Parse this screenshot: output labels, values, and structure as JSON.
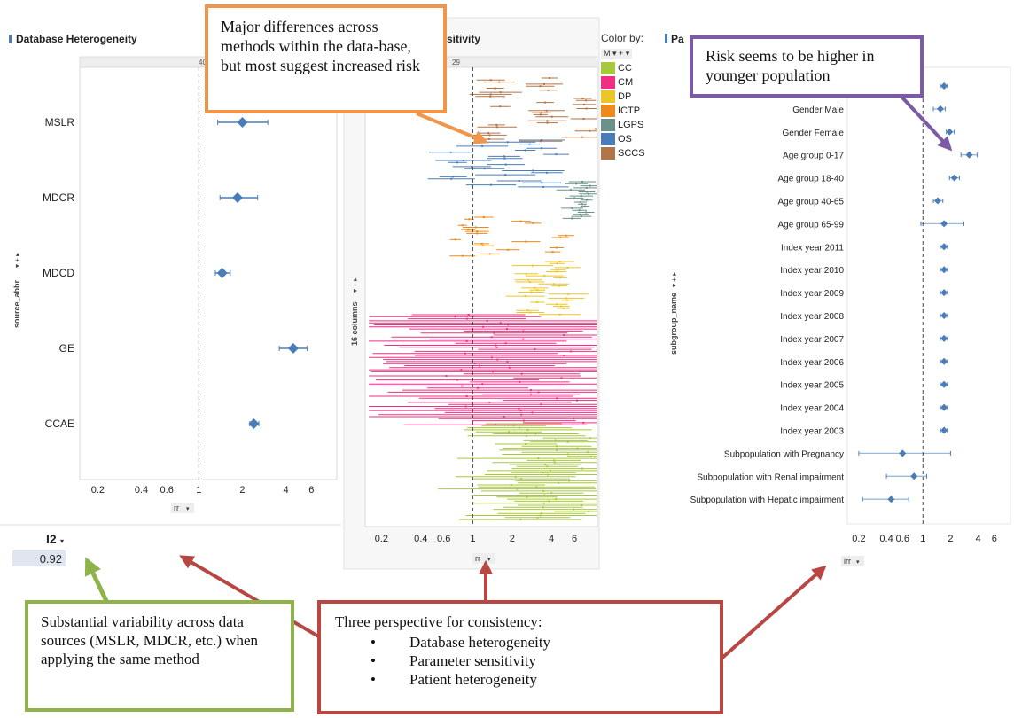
{
  "panels": {
    "database": {
      "title": "Database Heterogeneity",
      "top_count": "40",
      "y_field": "source_abbr",
      "x_field": "rr",
      "ticks": [
        0.2,
        0.4,
        0.6,
        1,
        2,
        4,
        6
      ],
      "rows": [
        {
          "label": "MSLR",
          "est": 2.0,
          "lo": 1.35,
          "hi": 3.0
        },
        {
          "label": "MDCR",
          "est": 1.85,
          "lo": 1.4,
          "hi": 2.55
        },
        {
          "label": "MDCD",
          "est": 1.45,
          "lo": 1.3,
          "hi": 1.65
        },
        {
          "label": "GE",
          "est": 4.5,
          "lo": 3.6,
          "hi": 5.6
        },
        {
          "label": "CCAE",
          "est": 2.4,
          "lo": 2.25,
          "hi": 2.6
        }
      ],
      "i2_label": "I2",
      "i2_value": "0.92"
    },
    "parameter": {
      "title_fragment": "sitivity",
      "top_count": "29",
      "y_field": "16 columns",
      "x_field": "rr",
      "ticks": [
        0.2,
        0.4,
        0.6,
        1,
        2,
        4,
        6
      ]
    },
    "patient": {
      "title_fragment": "Pa",
      "y_field": "subgroup_name",
      "x_field": "irr",
      "ticks": [
        0.2,
        0.4,
        0.6,
        1,
        2,
        4,
        6
      ],
      "rows": [
        {
          "label": "",
          "est": 1.7,
          "lo": 1.55,
          "hi": 1.85
        },
        {
          "label": "Gender Male",
          "est": 1.55,
          "lo": 1.3,
          "hi": 1.75
        },
        {
          "label": "Gender Female",
          "est": 1.95,
          "lo": 1.8,
          "hi": 2.2
        },
        {
          "label": "Age group 0-17",
          "est": 3.2,
          "lo": 2.6,
          "hi": 3.9
        },
        {
          "label": "Age group 18-40",
          "est": 2.2,
          "lo": 1.95,
          "hi": 2.5
        },
        {
          "label": "Age group 40-65",
          "est": 1.45,
          "lo": 1.3,
          "hi": 1.65
        },
        {
          "label": "Age group 65-99",
          "est": 1.7,
          "lo": 0.95,
          "hi": 2.8
        },
        {
          "label": "Index year 2011",
          "est": 1.7,
          "lo": 1.55,
          "hi": 1.85
        },
        {
          "label": "Index year 2010",
          "est": 1.7,
          "lo": 1.55,
          "hi": 1.85
        },
        {
          "label": "Index year 2009",
          "est": 1.7,
          "lo": 1.55,
          "hi": 1.85
        },
        {
          "label": "Index year 2008",
          "est": 1.7,
          "lo": 1.55,
          "hi": 1.85
        },
        {
          "label": "Index year 2007",
          "est": 1.7,
          "lo": 1.55,
          "hi": 1.85
        },
        {
          "label": "Index year 2006",
          "est": 1.7,
          "lo": 1.55,
          "hi": 1.85
        },
        {
          "label": "Index year 2005",
          "est": 1.7,
          "lo": 1.55,
          "hi": 1.85
        },
        {
          "label": "Index year 2004",
          "est": 1.7,
          "lo": 1.55,
          "hi": 1.85
        },
        {
          "label": "Index year 2003",
          "est": 1.7,
          "lo": 1.55,
          "hi": 1.85
        },
        {
          "label": "Subpopulation with Pregnancy",
          "est": 0.6,
          "lo": 0.2,
          "hi": 2.0
        },
        {
          "label": "Subpopulation with Renal impairment",
          "est": 0.8,
          "lo": 0.4,
          "hi": 1.1
        },
        {
          "label": "Subpopulation with Hepatic impairment",
          "est": 0.45,
          "lo": 0.22,
          "hi": 0.7
        }
      ]
    }
  },
  "legend": {
    "title": "Color by:",
    "control": "M",
    "items": [
      {
        "label": "CC",
        "color": "#a6c93c"
      },
      {
        "label": "CM",
        "color": "#ee2f82"
      },
      {
        "label": "DP",
        "color": "#ecc526"
      },
      {
        "label": "ICTP",
        "color": "#ee8a1c"
      },
      {
        "label": "LGPS",
        "color": "#6b918a"
      },
      {
        "label": "OS",
        "color": "#4a7db8"
      },
      {
        "label": "SCCS",
        "color": "#b07548"
      }
    ]
  },
  "callouts": {
    "orange": "Major differences across methods within the data-base, but most suggest increased risk",
    "purple": "Risk seems to be higher in younger population",
    "green": "Substantial variability across data sources (MSLR, MDCR, etc.) when applying the same method",
    "red_title": "Three perspective for consistency:",
    "red_items": [
      "Database heterogeneity",
      "Parameter sensitivity",
      "Patient heterogeneity"
    ]
  },
  "colors": {
    "point": "#4a7db8",
    "orange": "#f0964a",
    "purple": "#7d5aa6",
    "green": "#8db34a",
    "red": "#b84743"
  }
}
